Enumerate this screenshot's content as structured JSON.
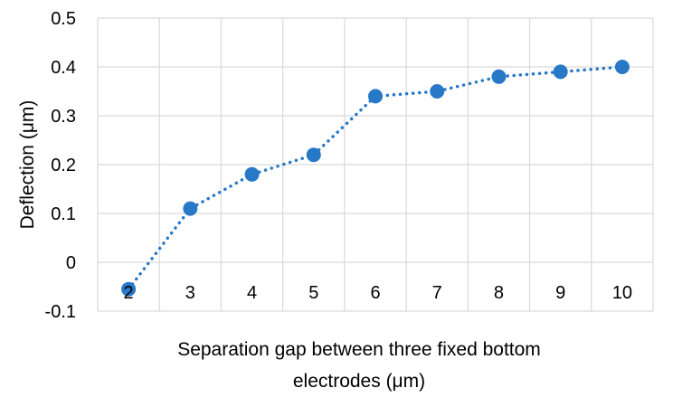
{
  "chart_data": {
    "type": "line",
    "title": "",
    "xlabel": "Separation gap between three fixed bottom electrodes (μm)",
    "xlabel_lines": [
      "Separation gap between three fixed bottom",
      "electrodes (μm)"
    ],
    "ylabel": "Deflection (μm)",
    "categories": [
      "2",
      "3",
      "4",
      "5",
      "6",
      "7",
      "8",
      "9",
      "10"
    ],
    "series": [
      {
        "values": [
          -0.055,
          0.11,
          0.18,
          0.22,
          0.34,
          0.35,
          0.38,
          0.39,
          0.4
        ],
        "color": "#2878c8",
        "line_style": "dotted",
        "marker": "circle"
      }
    ],
    "ylim": [
      -0.1,
      0.5
    ],
    "yticks": [
      -0.1,
      0,
      0.1,
      0.2,
      0.3,
      0.4,
      0.5
    ],
    "ytick_labels": [
      "-0.1",
      "0",
      "0.1",
      "0.2",
      "0.3",
      "0.4",
      "0.5"
    ],
    "x_tick_labels_position": "just below zero line",
    "grid": true,
    "legend": "none"
  }
}
